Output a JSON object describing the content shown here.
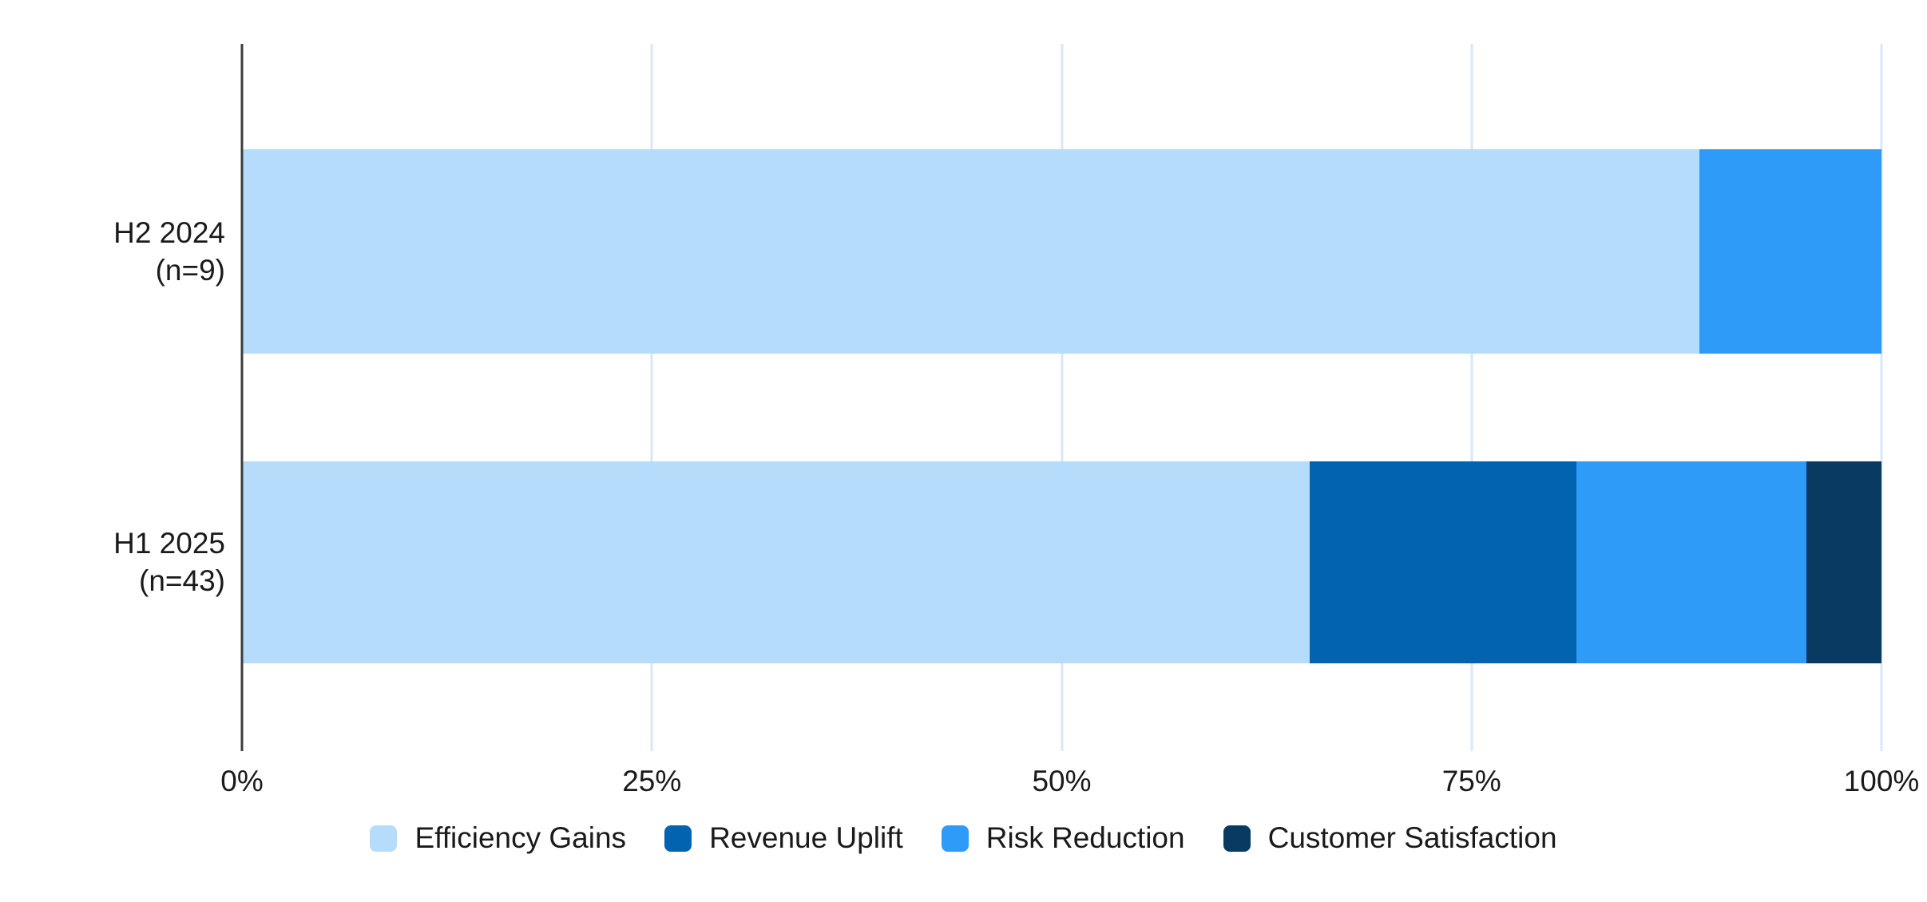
{
  "page": {
    "background": "#ffffff"
  },
  "chart_data": {
    "type": "bar",
    "stacked": true,
    "percent_stacked": true,
    "orientation": "horizontal",
    "title": "",
    "xlabel": "",
    "ylabel": "",
    "xlim": [
      0,
      100
    ],
    "x_ticks": [
      "0%",
      "25%",
      "50%",
      "75%",
      "100%"
    ],
    "grid": true,
    "legend_position": "bottom",
    "categories": [
      {
        "label": "H2 2024",
        "sublabel": "(n=9)"
      },
      {
        "label": "H1 2025",
        "sublabel": "(n=43)"
      }
    ],
    "series": [
      {
        "name": "Efficiency Gains",
        "color": "#B5DCFA",
        "values": [
          88.9,
          65.1
        ]
      },
      {
        "name": "Revenue Uplift",
        "color": "#0264B1",
        "values": [
          0,
          16.3
        ]
      },
      {
        "name": "Risk Reduction",
        "color": "#2E9BF9",
        "values": [
          11.1,
          14.0
        ]
      },
      {
        "name": "Customer Satisfaction",
        "color": "#083A62",
        "values": [
          0,
          4.6
        ]
      }
    ],
    "colors": {
      "axis_line": "#3C3C3C",
      "gridline": "#D8E7F9",
      "tick_label": "#1A1A1A",
      "category_label": "#1A1A1A",
      "legend_label": "#1A1A1A"
    }
  }
}
